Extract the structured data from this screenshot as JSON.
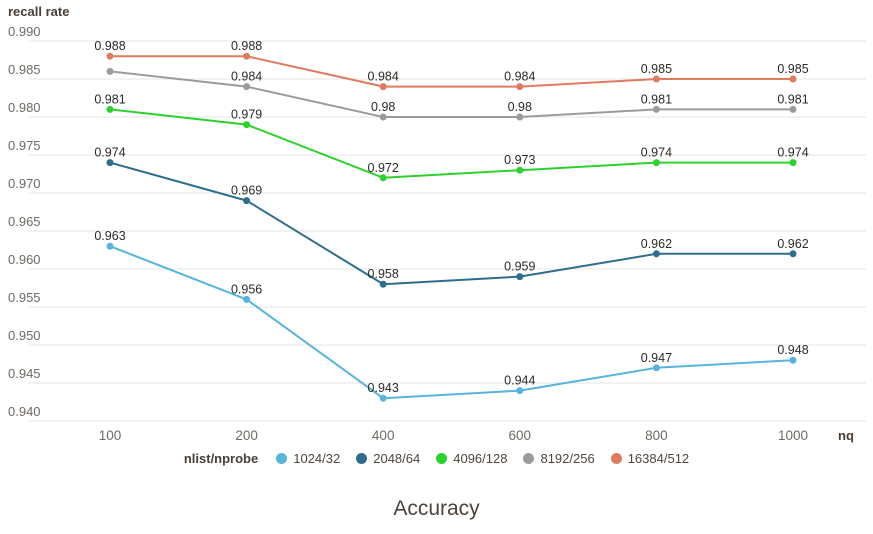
{
  "page": {
    "background": "#ffffff"
  },
  "chart_data": {
    "type": "line",
    "title": "Accuracy",
    "y_axis_label": "recall rate",
    "x_axis_label": "nq",
    "legend_title": "nlist/nprobe",
    "legend_position": "bottom",
    "grid": true,
    "categories": [
      "100",
      "200",
      "400",
      "600",
      "800",
      "1000"
    ],
    "y_ticks": [
      "0.990",
      "0.985",
      "0.980",
      "0.975",
      "0.970",
      "0.965",
      "0.960",
      "0.955",
      "0.950",
      "0.945",
      "0.940"
    ],
    "ylim": [
      0.94,
      0.99
    ],
    "series": [
      {
        "name": "1024/32",
        "color": "#56b4dc",
        "values": [
          0.963,
          0.956,
          0.943,
          0.944,
          0.947,
          0.948
        ],
        "labels": [
          "0.963",
          "0.956",
          "0.943",
          "0.944",
          "0.947",
          "0.948"
        ]
      },
      {
        "name": "2048/64",
        "color": "#2d6d8d",
        "values": [
          0.974,
          0.969,
          0.958,
          0.959,
          0.962,
          0.962
        ],
        "labels": [
          "0.974",
          "0.969",
          "0.958",
          "0.959",
          "0.962",
          "0.962"
        ]
      },
      {
        "name": "4096/128",
        "color": "#2dd12d",
        "values": [
          0.981,
          0.979,
          0.972,
          0.973,
          0.974,
          0.974
        ],
        "labels": [
          "0.981",
          "0.979",
          "0.972",
          "0.973",
          "0.974",
          "0.974"
        ]
      },
      {
        "name": "8192/256",
        "color": "#9b9b9b",
        "values": [
          0.986,
          0.984,
          0.98,
          0.98,
          0.981,
          0.981
        ],
        "labels": [
          "",
          "0.984",
          "0.98",
          "0.98",
          "0.981",
          "0.981"
        ]
      },
      {
        "name": "16384/512",
        "color": "#e07b5e",
        "values": [
          0.988,
          0.988,
          0.984,
          0.984,
          0.985,
          0.985
        ],
        "labels": [
          "0.988",
          "0.988",
          "0.984",
          "0.984",
          "0.985",
          "0.985"
        ]
      }
    ],
    "style": {
      "gridline_color": "#e6e6e6",
      "tick_label_color": "#6f6a64",
      "data_label_color": "#2e2a26",
      "axis_title_color": "#483e36"
    }
  }
}
